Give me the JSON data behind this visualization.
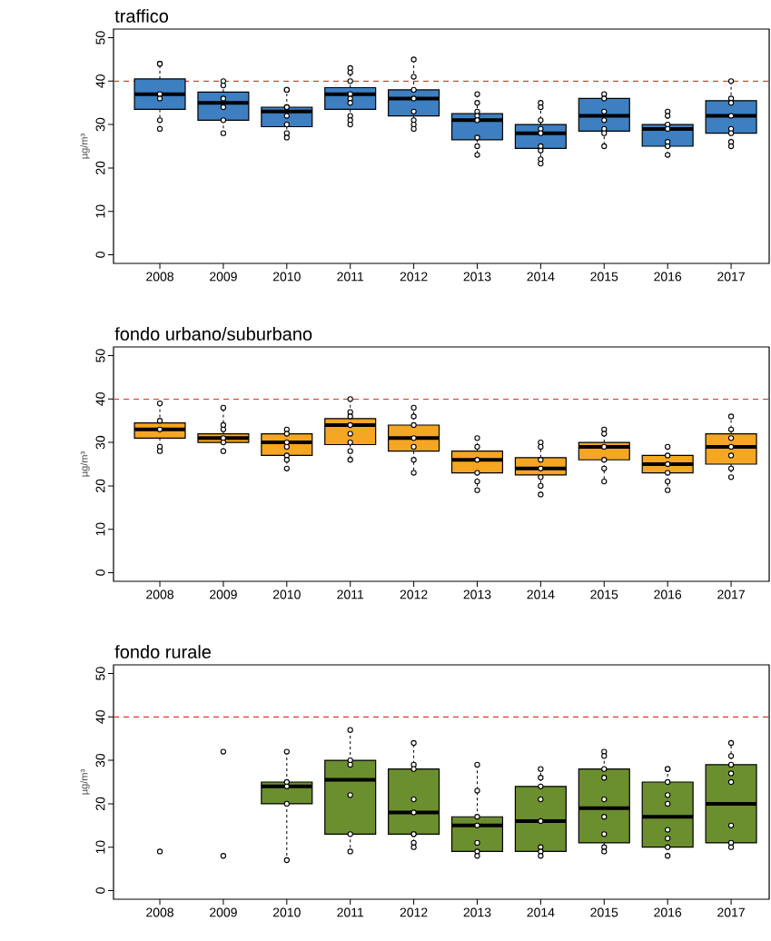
{
  "chart_data": [
    {
      "type": "box",
      "title": "traffico",
      "ylabel": "µg/m³",
      "x": [
        2008,
        2009,
        2010,
        2011,
        2012,
        2013,
        2014,
        2015,
        2016,
        2017
      ],
      "xlim": [
        2007.27,
        2017.6
      ],
      "xticks": [
        2008,
        2009,
        2010,
        2011,
        2012,
        2013,
        2014,
        2015,
        2016,
        2017
      ],
      "ylim": [
        -2,
        52
      ],
      "yticks": [
        0,
        10,
        20,
        30,
        40,
        50
      ],
      "marker": "circle",
      "ref_lines": [
        {
          "axis": "y",
          "value": 40,
          "color": "#e8342c",
          "line_style": "dashed"
        }
      ],
      "series": [
        {
          "color": "#3d7fc1",
          "boxes": [
            {
              "low": 29,
              "q1": 33.5,
              "median": 37,
              "q3": 40.5,
              "high": 44
            },
            {
              "low": 28,
              "q1": 31,
              "median": 35,
              "q3": 37.5,
              "high": 40
            },
            {
              "low": 27,
              "q1": 29.5,
              "median": 33,
              "q3": 34,
              "high": 38
            },
            {
              "low": 30,
              "q1": 33.5,
              "median": 37,
              "q3": 38.5,
              "high": 43
            },
            {
              "low": 29,
              "q1": 32,
              "median": 36,
              "q3": 38,
              "high": 45
            },
            {
              "low": 23,
              "q1": 26.5,
              "median": 31,
              "q3": 32.5,
              "high": 37
            },
            {
              "low": 21,
              "q1": 24.5,
              "median": 28,
              "q3": 30,
              "high": 35
            },
            {
              "low": 25,
              "q1": 28.5,
              "median": 32,
              "q3": 36,
              "high": 37
            },
            {
              "low": 23,
              "q1": 25,
              "median": 29,
              "q3": 30,
              "high": 33
            },
            {
              "low": 25,
              "q1": 28,
              "median": 32,
              "q3": 35.5,
              "high": 40
            }
          ]
        },
        {
          "type": "scatter",
          "color": "#000000",
          "x": [
            2008,
            2008,
            2008,
            2008,
            2008,
            2008,
            2009,
            2009,
            2009,
            2009,
            2009,
            2009,
            2010,
            2010,
            2010,
            2010,
            2010,
            2010,
            2010,
            2010,
            2011,
            2011,
            2011,
            2011,
            2011,
            2011,
            2011,
            2011,
            2011,
            2012,
            2012,
            2012,
            2012,
            2012,
            2012,
            2012,
            2012,
            2013,
            2013,
            2013,
            2013,
            2013,
            2013,
            2013,
            2013,
            2014,
            2014,
            2014,
            2014,
            2014,
            2014,
            2014,
            2014,
            2014,
            2015,
            2015,
            2015,
            2015,
            2015,
            2015,
            2015,
            2016,
            2016,
            2016,
            2016,
            2016,
            2016,
            2016,
            2017,
            2017,
            2017,
            2017,
            2017,
            2017,
            2017,
            2017
          ],
          "values": [
            44,
            44,
            37,
            36,
            31,
            29,
            40,
            39,
            36,
            34,
            31,
            28,
            38,
            38,
            34,
            34,
            32,
            30,
            28,
            27,
            43,
            42,
            40,
            37,
            36,
            35,
            32,
            31,
            30,
            45,
            41,
            38,
            36,
            33,
            31,
            30,
            29,
            37,
            35,
            33,
            32,
            31,
            27,
            25,
            23,
            35,
            34,
            31,
            29,
            28,
            25,
            24,
            22,
            21,
            37,
            36,
            33,
            31,
            29,
            28,
            25,
            33,
            32,
            30,
            29,
            26,
            25,
            23,
            40,
            36,
            35,
            32,
            29,
            28,
            26,
            25
          ]
        }
      ]
    },
    {
      "type": "box",
      "title": "fondo urbano/suburbano",
      "ylabel": "µg/m³",
      "x": [
        2008,
        2009,
        2010,
        2011,
        2012,
        2013,
        2014,
        2015,
        2016,
        2017
      ],
      "xlim": [
        2007.27,
        2017.6
      ],
      "xticks": [
        2008,
        2009,
        2010,
        2011,
        2012,
        2013,
        2014,
        2015,
        2016,
        2017
      ],
      "ylim": [
        -2,
        52
      ],
      "yticks": [
        0,
        10,
        20,
        30,
        40,
        50
      ],
      "marker": "circle",
      "ref_lines": [
        {
          "axis": "y",
          "value": 40,
          "color": "#e8342c",
          "line_style": "dashed"
        }
      ],
      "series": [
        {
          "color": "#f5a623",
          "boxes": [
            {
              "low": 28,
              "q1": 31,
              "median": 33,
              "q3": 34.5,
              "high": 39
            },
            {
              "low": 28,
              "q1": 30,
              "median": 31,
              "q3": 32,
              "high": 38
            },
            {
              "low": 24,
              "q1": 27,
              "median": 30,
              "q3": 32,
              "high": 33
            },
            {
              "low": 26,
              "q1": 29.5,
              "median": 34,
              "q3": 35.5,
              "high": 40
            },
            {
              "low": 23,
              "q1": 28,
              "median": 31,
              "q3": 34,
              "high": 38
            },
            {
              "low": 19,
              "q1": 23,
              "median": 26,
              "q3": 28,
              "high": 31
            },
            {
              "low": 18,
              "q1": 22.5,
              "median": 24,
              "q3": 26.5,
              "high": 30
            },
            {
              "low": 21,
              "q1": 26,
              "median": 29,
              "q3": 30,
              "high": 33
            },
            {
              "low": 19,
              "q1": 23,
              "median": 25,
              "q3": 27,
              "high": 29
            },
            {
              "low": 22,
              "q1": 25,
              "median": 29,
              "q3": 32,
              "high": 36
            }
          ]
        },
        {
          "type": "scatter",
          "color": "#000000",
          "x": [
            2008,
            2008,
            2008,
            2008,
            2008,
            2009,
            2009,
            2009,
            2009,
            2009,
            2009,
            2010,
            2010,
            2010,
            2010,
            2010,
            2010,
            2010,
            2011,
            2011,
            2011,
            2011,
            2011,
            2011,
            2011,
            2011,
            2012,
            2012,
            2012,
            2012,
            2012,
            2012,
            2012,
            2013,
            2013,
            2013,
            2013,
            2013,
            2013,
            2014,
            2014,
            2014,
            2014,
            2014,
            2014,
            2014,
            2015,
            2015,
            2015,
            2015,
            2015,
            2015,
            2016,
            2016,
            2016,
            2016,
            2016,
            2016,
            2017,
            2017,
            2017,
            2017,
            2017,
            2017,
            2017
          ],
          "values": [
            39,
            35,
            33,
            29,
            28,
            38,
            34,
            33,
            31,
            30,
            28,
            33,
            32,
            30,
            29,
            27,
            26,
            24,
            40,
            37,
            36,
            34,
            32,
            30,
            28,
            26,
            38,
            36,
            34,
            31,
            29,
            26,
            23,
            31,
            29,
            26,
            23,
            21,
            19,
            30,
            29,
            26,
            24,
            22,
            20,
            18,
            33,
            32,
            29,
            26,
            24,
            21,
            29,
            27,
            25,
            23,
            21,
            19,
            36,
            33,
            31,
            29,
            27,
            24,
            22
          ]
        }
      ]
    },
    {
      "type": "box",
      "title": "fondo rurale",
      "ylabel": "µg/m³",
      "x": [
        2010,
        2011,
        2012,
        2013,
        2014,
        2015,
        2016,
        2017
      ],
      "xlim": [
        2007.27,
        2017.6
      ],
      "xticks": [
        2008,
        2009,
        2010,
        2011,
        2012,
        2013,
        2014,
        2015,
        2016,
        2017
      ],
      "ylim": [
        -2,
        52
      ],
      "yticks": [
        0,
        10,
        20,
        30,
        40,
        50
      ],
      "marker": "circle",
      "ref_lines": [
        {
          "axis": "y",
          "value": 40,
          "color": "#e8342c",
          "line_style": "dashed"
        }
      ],
      "series": [
        {
          "color": "#6b8e2f",
          "boxes": [
            {
              "low": 7,
              "q1": 20,
              "median": 24,
              "q3": 25,
              "high": 32
            },
            {
              "low": 9,
              "q1": 13,
              "median": 25.5,
              "q3": 30,
              "high": 37
            },
            {
              "low": 10,
              "q1": 13,
              "median": 18,
              "q3": 28,
              "high": 34
            },
            {
              "low": 8,
              "q1": 9,
              "median": 15,
              "q3": 17,
              "high": 29
            },
            {
              "low": 8,
              "q1": 9,
              "median": 16,
              "q3": 24,
              "high": 28
            },
            {
              "low": 9,
              "q1": 11,
              "median": 19,
              "q3": 28,
              "high": 32
            },
            {
              "low": 8,
              "q1": 10,
              "median": 17,
              "q3": 25,
              "high": 28
            },
            {
              "low": 10,
              "q1": 11,
              "median": 20,
              "q3": 29,
              "high": 34
            }
          ]
        },
        {
          "type": "scatter",
          "color": "#000000",
          "x": [
            2008,
            2009,
            2009,
            2010,
            2010,
            2010,
            2010,
            2010,
            2011,
            2011,
            2011,
            2011,
            2011,
            2011,
            2012,
            2012,
            2012,
            2012,
            2012,
            2012,
            2012,
            2012,
            2012,
            2013,
            2013,
            2013,
            2013,
            2013,
            2013,
            2013,
            2014,
            2014,
            2014,
            2014,
            2014,
            2014,
            2014,
            2014,
            2015,
            2015,
            2015,
            2015,
            2015,
            2015,
            2015,
            2015,
            2015,
            2016,
            2016,
            2016,
            2016,
            2016,
            2016,
            2016,
            2016,
            2016,
            2017,
            2017,
            2017,
            2017,
            2017,
            2017,
            2017,
            2017
          ],
          "values": [
            9,
            32,
            8,
            32,
            25,
            24,
            20,
            7,
            37,
            30,
            29,
            22,
            13,
            9,
            34,
            29,
            28,
            21,
            18,
            13,
            13,
            11,
            10,
            29,
            23,
            17,
            15,
            11,
            9,
            8,
            28,
            26,
            24,
            21,
            16,
            10,
            9,
            8,
            32,
            31,
            28,
            26,
            21,
            17,
            13,
            10,
            9,
            28,
            28,
            25,
            22,
            20,
            14,
            12,
            10,
            8,
            34,
            31,
            29,
            27,
            25,
            15,
            11,
            10
          ]
        }
      ]
    }
  ]
}
